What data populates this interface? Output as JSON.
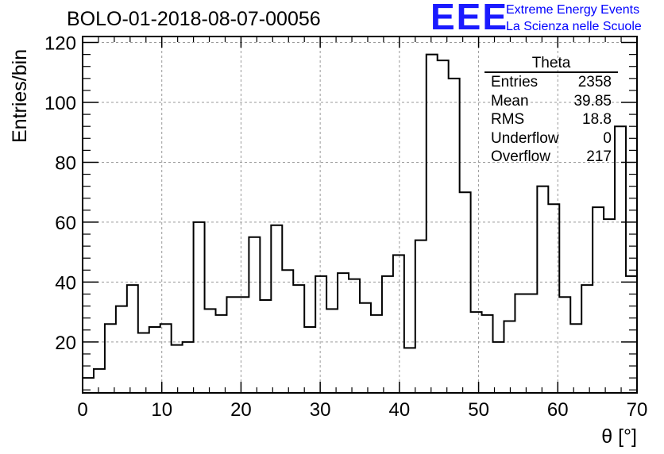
{
  "header": {
    "title": "BOLO-01-2018-08-07-00056",
    "logo_text": "EEE",
    "logo_line1": "Extreme Energy Events",
    "logo_line2": "La Scienza nelle Scuole",
    "logo_color": "#1a1aff"
  },
  "stats_box": {
    "title": "Theta",
    "rows": [
      {
        "label": "Entries",
        "value": "2358"
      },
      {
        "label": "Mean",
        "value": "39.85"
      },
      {
        "label": "RMS",
        "value": "18.8"
      },
      {
        "label": "Underflow",
        "value": "0"
      },
      {
        "label": "Overflow",
        "value": "217"
      }
    ]
  },
  "chart_data": {
    "type": "histogram",
    "title": "BOLO-01-2018-08-07-00056",
    "xlabel": "θ [°]",
    "ylabel": "Entries/bin",
    "xlim": [
      0,
      70
    ],
    "ylim": [
      3,
      122
    ],
    "bin_width": 1.4,
    "bin_edges_start": 0,
    "values": [
      8,
      11,
      26,
      32,
      39,
      23,
      25,
      26,
      19,
      20,
      60,
      31,
      29,
      35,
      35,
      55,
      34,
      59,
      44,
      39,
      25,
      42,
      31,
      43,
      41,
      33,
      29,
      42,
      49,
      18,
      54,
      116,
      114,
      108,
      70,
      30,
      29,
      20,
      27,
      36,
      36,
      72,
      66,
      35,
      26,
      39,
      65,
      61,
      92,
      42
    ],
    "x_ticks": [
      0,
      10,
      20,
      30,
      40,
      50,
      60,
      70
    ],
    "y_ticks": [
      20,
      40,
      60,
      80,
      100,
      120
    ],
    "grid": true,
    "line_color": "#000000"
  }
}
